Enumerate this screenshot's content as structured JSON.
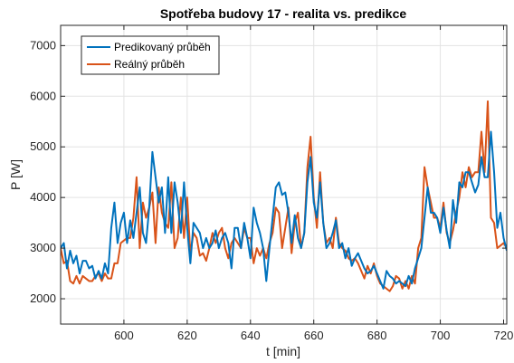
{
  "chart_data": {
    "type": "line",
    "title": "Spotřeba budovy 17 - realita vs. predikce",
    "xlabel": "t [min]",
    "ylabel": "P [W]",
    "xlim": [
      580,
      721
    ],
    "ylim": [
      1500,
      7400
    ],
    "xticks": [
      600,
      620,
      640,
      660,
      680,
      700,
      720
    ],
    "yticks": [
      2000,
      3000,
      4000,
      5000,
      6000,
      7000
    ],
    "grid": true,
    "legend_position": "top-left",
    "x": [
      580,
      581,
      582,
      583,
      584,
      585,
      586,
      587,
      588,
      589,
      590,
      591,
      592,
      593,
      594,
      595,
      596,
      597,
      598,
      599,
      600,
      601,
      602,
      603,
      604,
      605,
      606,
      607,
      608,
      609,
      610,
      611,
      612,
      613,
      614,
      615,
      616,
      617,
      618,
      619,
      620,
      621,
      622,
      623,
      624,
      625,
      626,
      627,
      628,
      629,
      630,
      631,
      632,
      633,
      634,
      635,
      636,
      637,
      638,
      639,
      640,
      641,
      642,
      643,
      644,
      645,
      646,
      647,
      648,
      649,
      650,
      651,
      652,
      653,
      654,
      655,
      656,
      657,
      658,
      659,
      660,
      661,
      662,
      663,
      664,
      665,
      666,
      667,
      668,
      669,
      670,
      671,
      672,
      673,
      674,
      675,
      676,
      677,
      678,
      679,
      680,
      681,
      682,
      683,
      684,
      685,
      686,
      687,
      688,
      689,
      690,
      691,
      692,
      693,
      694,
      695,
      696,
      697,
      698,
      699,
      700,
      701,
      702,
      703,
      704,
      705,
      706,
      707,
      708,
      709,
      710,
      711,
      712,
      713,
      714,
      715,
      716,
      717,
      718,
      719,
      720,
      721
    ],
    "series": [
      {
        "name": "Predikovaný průběh",
        "color": "#0072BD",
        "values": [
          3000,
          3100,
          2600,
          2950,
          2700,
          2850,
          2500,
          2750,
          2750,
          2600,
          2650,
          2400,
          2550,
          2400,
          2700,
          2500,
          3400,
          3900,
          3100,
          3500,
          3700,
          3100,
          3550,
          3200,
          3700,
          4200,
          3300,
          3100,
          3800,
          4900,
          4400,
          3900,
          4200,
          3300,
          4400,
          3300,
          4300,
          3900,
          3300,
          4300,
          3400,
          2700,
          3500,
          3400,
          3300,
          3000,
          3200,
          3000,
          3100,
          3350,
          3000,
          3200,
          3300,
          3100,
          2600,
          3400,
          3400,
          3000,
          3500,
          3200,
          2800,
          3800,
          3500,
          3300,
          3000,
          2350,
          3000,
          3600,
          4200,
          4300,
          4050,
          4100,
          3700,
          3100,
          3650,
          3200,
          3000,
          3300,
          4300,
          4800,
          3900,
          3600,
          4300,
          3500,
          3000,
          3100,
          3300,
          3550,
          3000,
          3100,
          2800,
          3000,
          2650,
          2800,
          2900,
          2750,
          2600,
          2500,
          2550,
          2650,
          2500,
          2350,
          2200,
          2550,
          2450,
          2400,
          2300,
          2350,
          2300,
          2250,
          2450,
          2300,
          2600,
          2800,
          3000,
          3600,
          4200,
          3700,
          3700,
          3600,
          3300,
          3800,
          3350,
          3000,
          3950,
          3500,
          4300,
          4200,
          4500,
          4500,
          4300,
          4100,
          4250,
          4800,
          4400,
          4400,
          5300,
          4500,
          3400,
          3700,
          3200,
          2950
        ]
      },
      {
        "name": "Reálný průběh",
        "color": "#D95319",
        "values": [
          3000,
          2700,
          2750,
          2350,
          2300,
          2450,
          2300,
          2450,
          2400,
          2350,
          2350,
          2450,
          2500,
          2350,
          2500,
          2400,
          2400,
          2700,
          2700,
          3100,
          3150,
          3200,
          3200,
          3600,
          4400,
          3000,
          3900,
          3600,
          3800,
          4100,
          3100,
          4200,
          3700,
          3500,
          3400,
          4300,
          3000,
          3200,
          4000,
          3200,
          4000,
          2900,
          3300,
          3200,
          2850,
          2900,
          2750,
          3000,
          3300,
          3100,
          3300,
          3400,
          3000,
          2800,
          3100,
          3200,
          3100,
          3000,
          3400,
          3200,
          3200,
          2700,
          3000,
          2850,
          3000,
          2800,
          3100,
          3300,
          3800,
          3700,
          3000,
          3400,
          3800,
          2900,
          3500,
          3700,
          3000,
          3300,
          4600,
          5200,
          4000,
          3400,
          4500,
          3500,
          3100,
          3200,
          3000,
          3600,
          3100,
          3000,
          2950,
          2800,
          2750,
          2800,
          2700,
          2550,
          2400,
          2650,
          2500,
          2700,
          2450,
          2300,
          2250,
          2200,
          2150,
          2250,
          2450,
          2400,
          2200,
          2350,
          2200,
          2450,
          2300,
          3000,
          3200,
          4600,
          4200,
          3900,
          3600,
          3600,
          3400,
          3900,
          3300,
          3100,
          3350,
          3700,
          4000,
          4500,
          4200,
          4600,
          4400,
          4500,
          4500,
          5300,
          4500,
          5900,
          3600,
          3500,
          3000,
          3050,
          3100,
          3000
        ]
      }
    ]
  }
}
